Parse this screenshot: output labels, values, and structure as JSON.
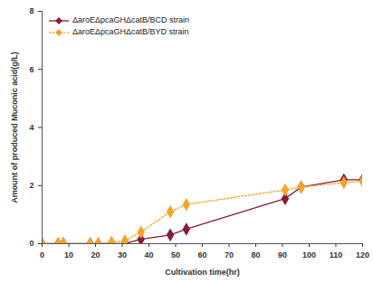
{
  "chart_data": {
    "type": "line",
    "x_label": "Cultivation time(hr)",
    "y_label": "Amount of produced Muconic acid(g/L)",
    "x": [
      0,
      6,
      8,
      18,
      21,
      26,
      31,
      37,
      48,
      54,
      91,
      97,
      113,
      120
    ],
    "series": [
      {
        "name": "ΔaroEΔpcaGHΔcatB/BCD strain",
        "color": "#861b35",
        "marker": "diamond",
        "line_style": "solid",
        "values": [
          0,
          0,
          0,
          0,
          0,
          0,
          0,
          0.15,
          0.3,
          0.5,
          1.55,
          1.95,
          2.2,
          2.2
        ]
      },
      {
        "name": "ΔaroEΔpcaGHΔcatB/BYD strain",
        "color": "#f4a52a",
        "marker": "diamond",
        "line_style": "dotted",
        "values": [
          0,
          0,
          0,
          0,
          0,
          0.05,
          0.1,
          0.4,
          1.1,
          1.35,
          1.85,
          1.95,
          2.1,
          2.15
        ]
      }
    ],
    "xlim": [
      0,
      120
    ],
    "xticks": [
      0,
      10,
      20,
      30,
      40,
      50,
      60,
      70,
      80,
      90,
      100,
      110,
      120
    ],
    "ylim": [
      0,
      8
    ],
    "yticks": [
      0,
      2,
      4,
      6,
      8
    ],
    "grid": false,
    "legend": "top-left"
  }
}
